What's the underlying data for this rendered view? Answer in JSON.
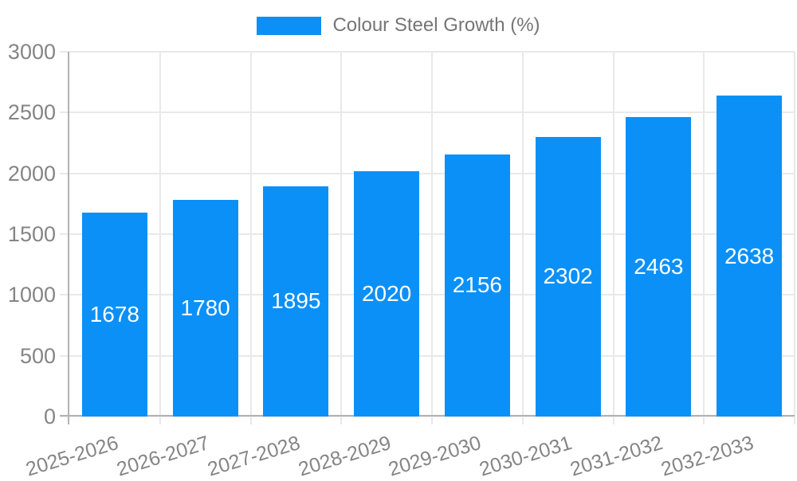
{
  "chart_data": {
    "type": "bar",
    "title": "",
    "legend_label": "Colour Steel Growth (%)",
    "legend_position": "top",
    "categories": [
      "2025-2026",
      "2026-2027",
      "2027-2028",
      "2028-2029",
      "2029-2030",
      "2030-2031",
      "2031-2032",
      "2032-2033"
    ],
    "series": [
      {
        "name": "Colour Steel Growth (%)",
        "values": [
          1678,
          1780,
          1895,
          2020,
          2156,
          2302,
          2463,
          2638
        ]
      }
    ],
    "xlabel": "",
    "ylabel": "",
    "ylim": [
      0,
      3000
    ],
    "yticks": [
      0,
      500,
      1000,
      1500,
      2000,
      2500,
      3000
    ],
    "grid": true,
    "x_label_rotation_deg": -17,
    "colors": {
      "bar": "#0b90f8",
      "bar_label": "#ffffff",
      "axis_text": "#858585",
      "legend_text": "#757575",
      "axis_line": "#b3b3b3",
      "gridline": "#e9e9e9",
      "background": "#ffffff"
    }
  }
}
